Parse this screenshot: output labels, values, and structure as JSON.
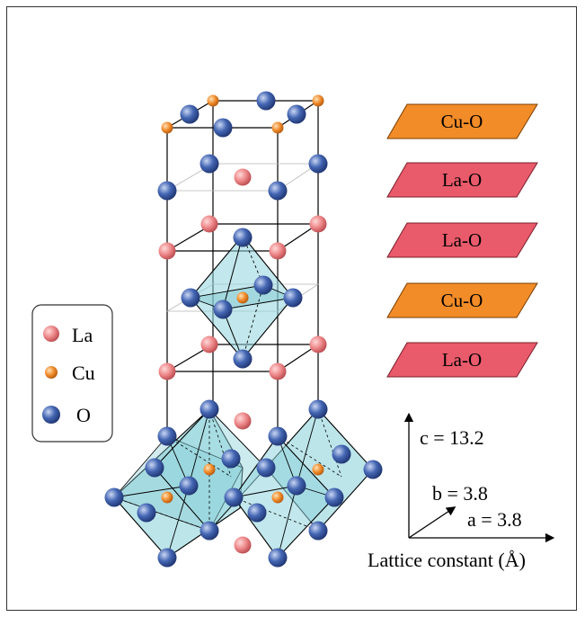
{
  "legend": {
    "items": [
      {
        "label": "La",
        "color": "#e9787a",
        "icon": "la-atom-icon"
      },
      {
        "label": "Cu",
        "color": "#f08a2a",
        "icon": "cu-atom-icon"
      },
      {
        "label": "O",
        "color": "#3a5ea8",
        "icon": "o-atom-icon"
      }
    ]
  },
  "planes": [
    {
      "label": "Cu-O",
      "color": "#f28c28"
    },
    {
      "label": "La-O",
      "color": "#e95a6a"
    },
    {
      "label": "La-O",
      "color": "#e95a6a"
    },
    {
      "label": "Cu-O",
      "color": "#f28c28"
    },
    {
      "label": "La-O",
      "color": "#e95a6a"
    }
  ],
  "lattice": {
    "c": "c = 13.2",
    "b": "b = 3.8",
    "a": "a = 3.8",
    "caption": "Lattice constant (Å)"
  },
  "colors": {
    "la": "#e9787a",
    "cu": "#f08a2a",
    "o": "#3a5ea8",
    "octahedron": "#8fd3dc"
  }
}
